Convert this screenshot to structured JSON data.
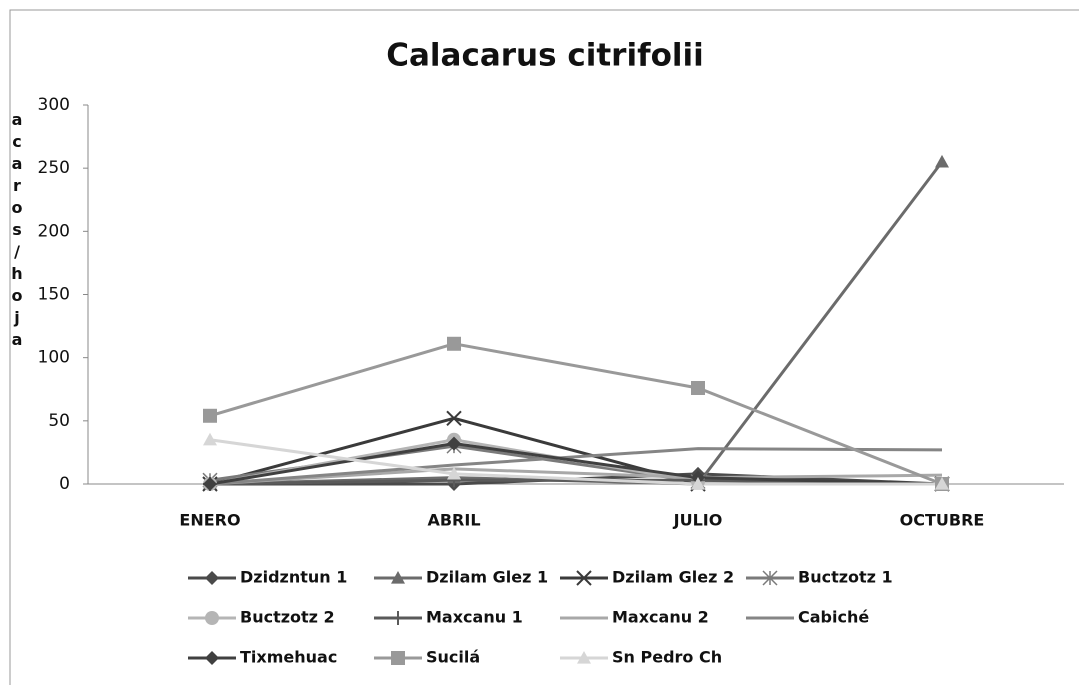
{
  "chart_data": {
    "type": "line",
    "title": "Calacarus citrifolii",
    "y_label": "acaros/hoja",
    "categories": [
      "ENERO",
      "ABRIL",
      "JULIO",
      "OCTUBRE"
    ],
    "ylim": [
      0,
      300
    ],
    "yticks": [
      0,
      50,
      100,
      150,
      200,
      250,
      300
    ],
    "series": [
      {
        "name": "Dzidzntun 1",
        "color": "#4a4a4a",
        "marker": "diamond",
        "values": [
          0,
          0,
          8,
          0
        ]
      },
      {
        "name": "Dzilam Glez 1",
        "color": "#6b6b6b",
        "marker": "triangle",
        "values": [
          0,
          5,
          0,
          255
        ]
      },
      {
        "name": "Dzilam Glez 2",
        "color": "#3a3a3a",
        "marker": "x",
        "values": [
          0,
          52,
          0,
          0
        ]
      },
      {
        "name": "Buctzotz 1",
        "color": "#7a7a7a",
        "marker": "asterisk",
        "values": [
          3,
          30,
          2,
          0
        ]
      },
      {
        "name": "Buctzotz 2",
        "color": "#b5b5b5",
        "marker": "circle",
        "values": [
          0,
          35,
          2,
          0
        ]
      },
      {
        "name": "Maxcanu 1",
        "color": "#5a5a5a",
        "marker": "plus",
        "values": [
          0,
          3,
          3,
          0
        ]
      },
      {
        "name": "Maxcanu 2",
        "color": "#a8a8a8",
        "marker": "none",
        "values": [
          0,
          12,
          5,
          7
        ]
      },
      {
        "name": "Cabiché",
        "color": "#858585",
        "marker": "none",
        "values": [
          0,
          15,
          28,
          27
        ]
      },
      {
        "name": "Tixmehuac",
        "color": "#404040",
        "marker": "diamond",
        "values": [
          0,
          32,
          5,
          0
        ]
      },
      {
        "name": "Sucilá",
        "color": "#999999",
        "marker": "square",
        "values": [
          54,
          111,
          76,
          0
        ]
      },
      {
        "name": "Sn Pedro Ch",
        "color": "#d6d6d6",
        "marker": "triangle",
        "values": [
          35,
          8,
          0,
          0
        ]
      }
    ]
  }
}
